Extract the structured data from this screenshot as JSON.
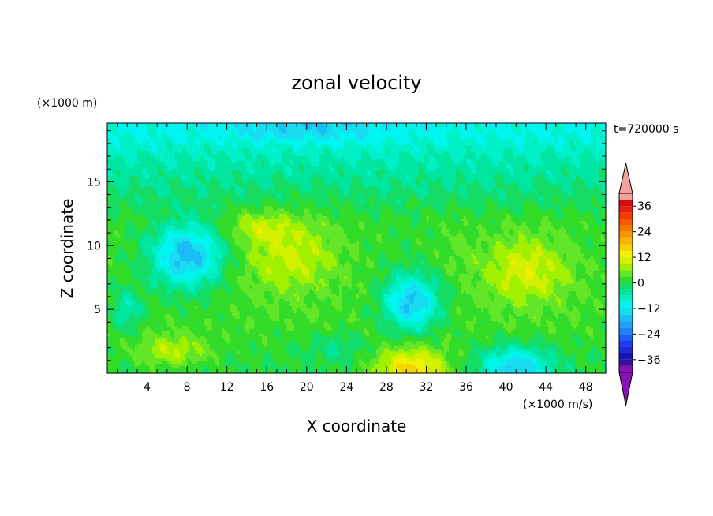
{
  "chart_data": {
    "type": "heatmap",
    "title": "zonal velocity",
    "xlabel": "X coordinate",
    "ylabel": "Z coordinate",
    "x_unit_label": "(×1000 m/s)",
    "y_unit_label": "(×1000 m)",
    "time_label": "t=720000 s",
    "xlim": [
      0,
      50
    ],
    "ylim": [
      0,
      19.6
    ],
    "x_ticks": [
      4,
      8,
      12,
      16,
      20,
      24,
      28,
      32,
      36,
      40,
      44,
      48
    ],
    "y_ticks": [
      5,
      10,
      15
    ],
    "colorbar": {
      "ticks": [
        36,
        24,
        12,
        0,
        -12,
        -24,
        -36
      ],
      "levels": [
        -42,
        -39,
        -36,
        -33,
        -30,
        -27,
        -24,
        -21,
        -18,
        -15,
        -12,
        -9,
        -6,
        -3,
        0,
        3,
        6,
        9,
        12,
        15,
        18,
        21,
        24,
        27,
        30,
        33,
        36,
        39,
        42
      ],
      "colors_low_to_high": [
        "#8a10b8",
        "#3c0f9b",
        "#1414b4",
        "#1f2ad2",
        "#1e3cf0",
        "#1e5ef5",
        "#1e82f5",
        "#1ea0f5",
        "#19bef5",
        "#19dcf0",
        "#00f5f0",
        "#00f0c8",
        "#00e6a0",
        "#14dc64",
        "#32dc28",
        "#64e628",
        "#a0f000",
        "#d2f000",
        "#f0f000",
        "#f5d200",
        "#f5b400",
        "#f59600",
        "#f57800",
        "#f55a00",
        "#f03c00",
        "#e61e14",
        "#d20f0f",
        "#f2a0a0"
      ],
      "extend": "both"
    },
    "base_rows": [
      {
        "z": 19.6,
        "value": -10
      },
      {
        "z": 18.5,
        "value": -9
      },
      {
        "z": 17.0,
        "value": -6
      },
      {
        "z": 15.5,
        "value": -4
      },
      {
        "z": 14.0,
        "value": -2
      },
      {
        "z": 12.0,
        "value": 1
      },
      {
        "z": 10.0,
        "value": 1
      },
      {
        "z": 7.0,
        "value": 2
      },
      {
        "z": 4.0,
        "value": 2
      },
      {
        "z": 2.0,
        "value": 1
      },
      {
        "z": 0.0,
        "value": 0
      }
    ],
    "features": [
      {
        "x": 20,
        "z": 19.4,
        "rx": 10,
        "rz": 1.6,
        "value": -15
      },
      {
        "x": 8,
        "z": 9.2,
        "rx": 4.5,
        "rz": 3.2,
        "value": -17
      },
      {
        "x": 30.5,
        "z": 5.6,
        "rx": 3.5,
        "rz": 2.8,
        "value": -16
      },
      {
        "x": 18.5,
        "z": 9.4,
        "rx": 6,
        "rz": 3.6,
        "value": 10
      },
      {
        "x": 15,
        "z": 11.5,
        "rx": 4,
        "rz": 1.5,
        "value": 7
      },
      {
        "x": 42,
        "z": 8.2,
        "rx": 5.5,
        "rz": 3.5,
        "value": 11
      },
      {
        "x": 30.5,
        "z": 0.3,
        "rx": 4.5,
        "rz": 2.2,
        "value": 16
      },
      {
        "x": 6.5,
        "z": 1.8,
        "rx": 4.5,
        "rz": 1.5,
        "value": 9
      },
      {
        "x": 41,
        "z": 0.5,
        "rx": 4.5,
        "rz": 2.0,
        "value": -15
      },
      {
        "x": 23,
        "z": 2.0,
        "rx": 4,
        "rz": 1.5,
        "value": -3
      },
      {
        "x": 2.0,
        "z": 5.0,
        "rx": 2,
        "rz": 2.0,
        "value": -6
      },
      {
        "x": 35,
        "z": 10.0,
        "rx": 2.5,
        "rz": 2.5,
        "value": 3
      }
    ]
  }
}
